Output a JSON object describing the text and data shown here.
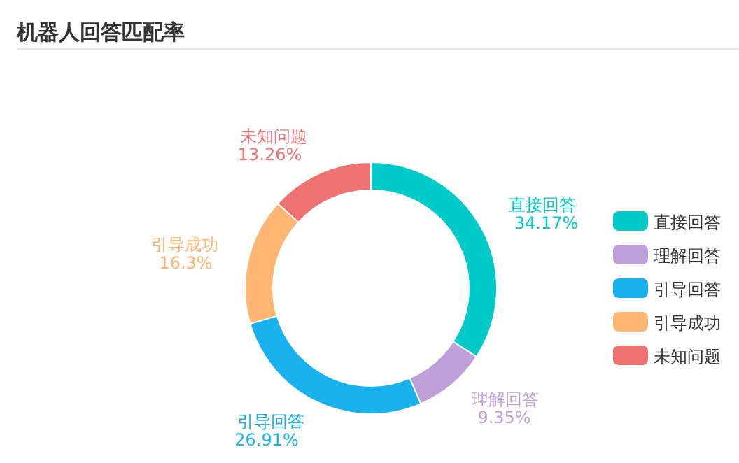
{
  "chart_data": {
    "type": "donut",
    "title": "机器人回答匹配率",
    "categories": [
      "直接回答",
      "理解回答",
      "引导回答",
      "引导成功",
      "未知问题"
    ],
    "values": [
      34.17,
      9.35,
      26.91,
      16.3,
      13.26
    ],
    "value_labels": [
      "34.17%",
      "9.35%",
      "26.91%",
      "16.3%",
      "13.26%"
    ],
    "colors": [
      "#00cbc8",
      "#bc9fd8",
      "#19b1ed",
      "#ffb672",
      "#ee7272"
    ],
    "legend": "right"
  }
}
